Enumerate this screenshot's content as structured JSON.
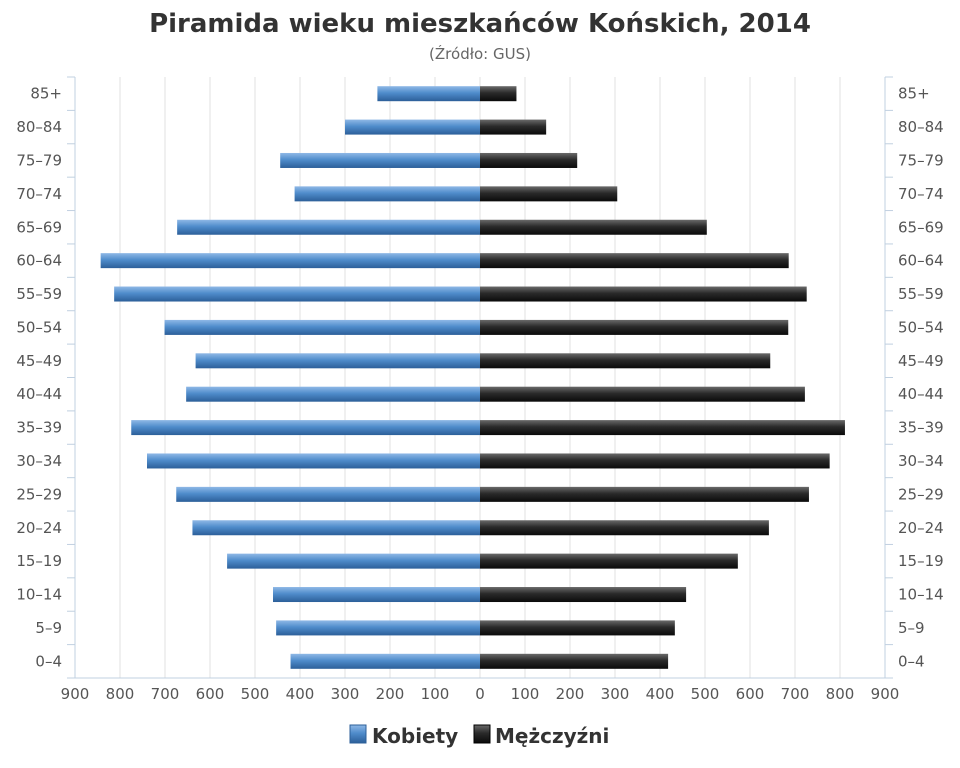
{
  "chart_data": {
    "type": "bar",
    "orientation": "horizontal",
    "layout": "population-pyramid",
    "title": "Piramida wieku mieszkańców Końskich, 2014",
    "subtitle": "(Źródło: GUS)",
    "categories": [
      "85+",
      "80–84",
      "75–79",
      "70–74",
      "65–69",
      "60–64",
      "55–59",
      "50–54",
      "45–49",
      "40–44",
      "35–39",
      "30–34",
      "25–29",
      "20–24",
      "15–19",
      "10–14",
      "5–9",
      "0–4"
    ],
    "series": [
      {
        "name": "Kobiety",
        "side": "left",
        "color": "#3a78b8",
        "values": [
          228,
          300,
          444,
          412,
          673,
          843,
          813,
          701,
          632,
          653,
          775,
          740,
          675,
          639,
          562,
          460,
          453,
          421
        ]
      },
      {
        "name": "Mężczyźni",
        "side": "right",
        "color": "#222222",
        "values": [
          81,
          147,
          216,
          305,
          504,
          686,
          726,
          685,
          645,
          722,
          811,
          777,
          731,
          642,
          573,
          458,
          433,
          418
        ]
      }
    ],
    "x_ticks": [
      "900",
      "800",
      "700",
      "600",
      "500",
      "400",
      "300",
      "200",
      "100",
      "0",
      "100",
      "200",
      "300",
      "400",
      "500",
      "600",
      "700",
      "800",
      "900"
    ],
    "xlim": [
      -900,
      900
    ],
    "grid": true,
    "legend_position": "bottom-center"
  }
}
